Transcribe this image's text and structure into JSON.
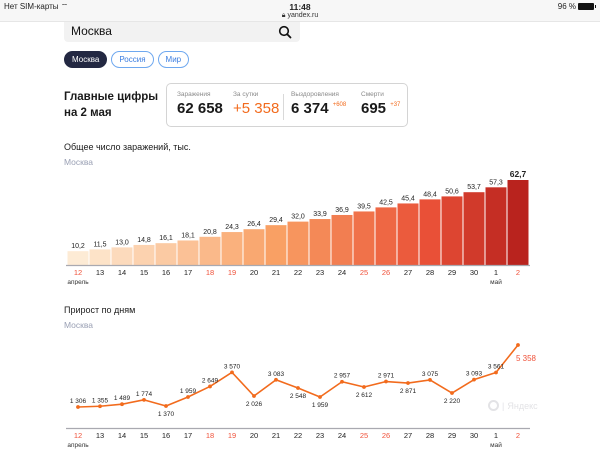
{
  "status_bar": {
    "carrier": "Нет SIM-карты",
    "time": "11:48",
    "url": "yandex.ru",
    "battery": "96 %"
  },
  "search": {
    "value": "Москва",
    "icon": "search-icon"
  },
  "region_tabs": [
    {
      "label": "Москва",
      "active": true
    },
    {
      "label": "Россия",
      "active": false
    },
    {
      "label": "Мир",
      "active": false
    }
  ],
  "headline": {
    "line1": "Главные цифры",
    "line2": "на 2 мая"
  },
  "summary": {
    "infected": {
      "label": "Заражения",
      "value": "62 658"
    },
    "daily": {
      "label": "За сутки",
      "value": "+5 358"
    },
    "recovered": {
      "label": "Выздоровления",
      "value": "6 374",
      "delta": "+608"
    },
    "deaths": {
      "label": "Смерти",
      "value": "695",
      "delta": "+37"
    }
  },
  "colors": {
    "accent": "#f26b1d",
    "weekend": "#f0523a",
    "chip_active": "#232842",
    "chip_border": "#6fa8ef"
  },
  "chart_data": [
    {
      "type": "bar",
      "title": "Общее число заражений, тыс.",
      "subtitle": "Москва",
      "categories": [
        "12",
        "13",
        "14",
        "15",
        "16",
        "17",
        "18",
        "19",
        "20",
        "21",
        "22",
        "23",
        "24",
        "25",
        "26",
        "27",
        "28",
        "29",
        "30",
        "1",
        "2"
      ],
      "weekend": [
        true,
        false,
        false,
        false,
        false,
        false,
        true,
        true,
        false,
        false,
        false,
        false,
        false,
        true,
        true,
        false,
        false,
        false,
        false,
        false,
        true
      ],
      "month_labels": [
        {
          "index": 0,
          "label": "апрель"
        },
        {
          "index": 19,
          "label": "май"
        }
      ],
      "values": [
        10.2,
        11.5,
        13.0,
        14.8,
        16.1,
        18.1,
        20.8,
        24.3,
        26.4,
        29.4,
        32.0,
        33.9,
        36.9,
        39.5,
        42.5,
        45.4,
        48.4,
        50.6,
        53.7,
        57.3,
        62.7
      ],
      "value_labels": [
        "10,2",
        "11,5",
        "13,0",
        "14,8",
        "16,1",
        "18,1",
        "20,8",
        "24,3",
        "26,4",
        "29,4",
        "32,0",
        "33,9",
        "36,9",
        "39,5",
        "42,5",
        "45,4",
        "48,4",
        "50,6",
        "53,7",
        "57,3",
        "62,7"
      ],
      "xlabel": "",
      "ylabel": "",
      "ylim": [
        0,
        62.7
      ],
      "grid": false
    },
    {
      "type": "line",
      "title": "Прирост по дням",
      "subtitle": "Москва",
      "categories": [
        "12",
        "13",
        "14",
        "15",
        "16",
        "17",
        "18",
        "19",
        "20",
        "21",
        "22",
        "23",
        "24",
        "25",
        "26",
        "27",
        "28",
        "29",
        "30",
        "1",
        "2"
      ],
      "weekend": [
        true,
        false,
        false,
        false,
        false,
        false,
        true,
        true,
        false,
        false,
        false,
        false,
        false,
        true,
        true,
        false,
        false,
        false,
        false,
        false,
        true
      ],
      "month_labels": [
        {
          "index": 0,
          "label": "апрель"
        },
        {
          "index": 19,
          "label": "май"
        }
      ],
      "values": [
        1306,
        1355,
        1489,
        1774,
        1370,
        1959,
        2649,
        3570,
        2026,
        3083,
        2548,
        1959,
        2957,
        2612,
        2971,
        2871,
        3075,
        2220,
        3093,
        3561,
        5358
      ],
      "value_labels": [
        "1 306",
        "1 355",
        "1 489",
        "1 774",
        "1 370",
        "1 959",
        "2 649",
        "3 570",
        "2 026",
        "3 083",
        "2 548",
        "1 959",
        "2 957",
        "2 612",
        "2 971",
        "2 871",
        "3 075",
        "2 220",
        "3 093",
        "3 561",
        "5 358"
      ],
      "label_position": [
        "above",
        "above",
        "above",
        "above",
        "below",
        "above",
        "above",
        "above",
        "below",
        "above",
        "below",
        "below",
        "above",
        "below",
        "above",
        "below",
        "above",
        "below",
        "above",
        "above",
        "below"
      ],
      "xlabel": "",
      "ylabel": "",
      "grid": false
    }
  ],
  "watermark": "Яндекс"
}
